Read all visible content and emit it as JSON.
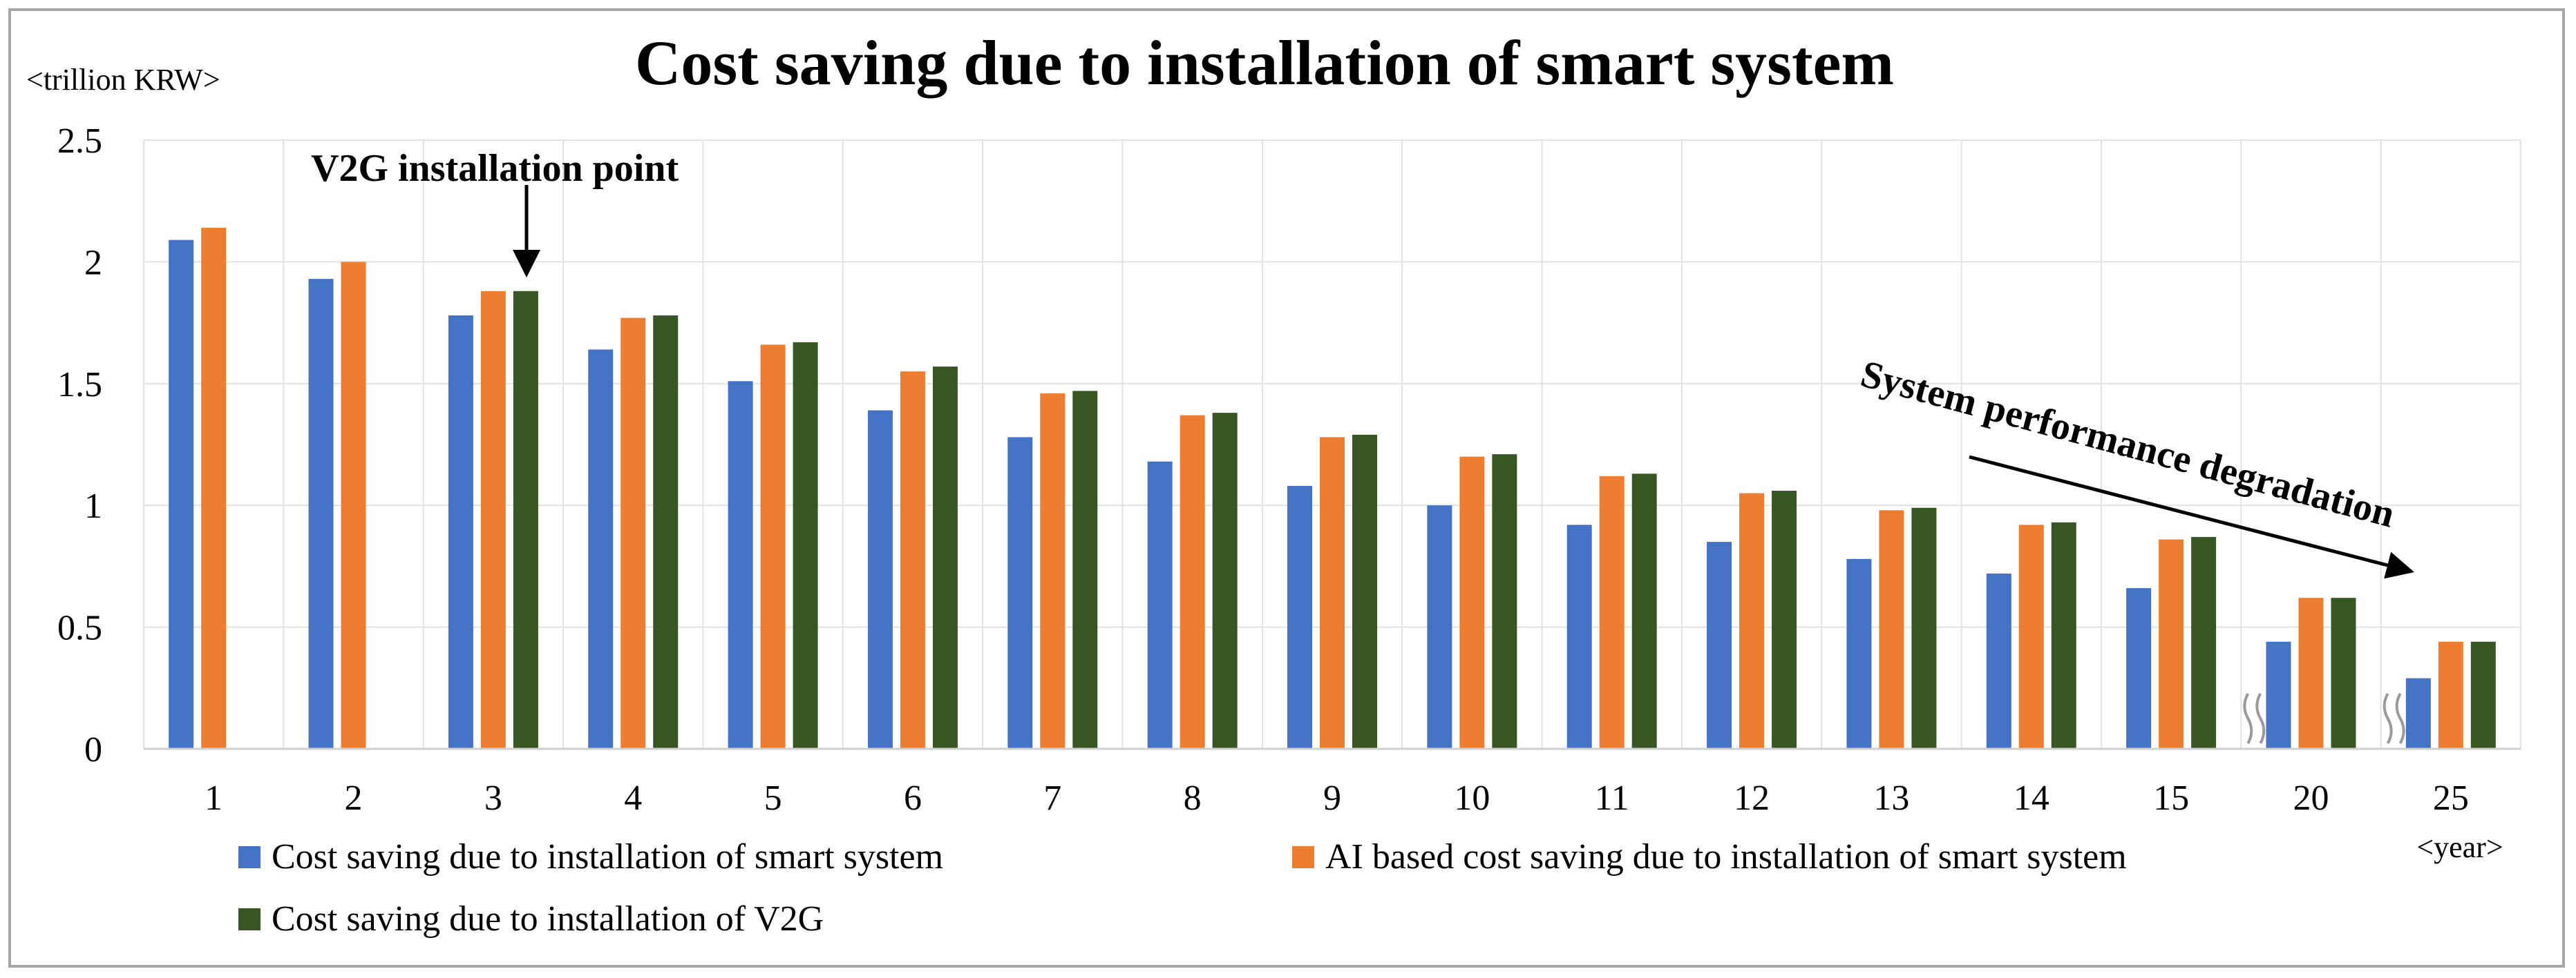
{
  "chart_data": {
    "type": "bar",
    "title": "Cost saving due to installation of smart system",
    "ylabel": "<trillion KRW>",
    "xlabel": "<year>",
    "ylim": [
      0,
      2.5
    ],
    "yticks": [
      0,
      0.5,
      1,
      1.5,
      2,
      2.5
    ],
    "ytick_labels": [
      "0",
      "0.5",
      "1",
      "1.5",
      "2",
      "2.5"
    ],
    "categories": [
      "1",
      "2",
      "3",
      "4",
      "5",
      "6",
      "7",
      "8",
      "9",
      "10",
      "11",
      "12",
      "13",
      "14",
      "15",
      "20",
      "25"
    ],
    "series": [
      {
        "name": "Cost saving due to installation of smart system",
        "color": "#4472c4",
        "values": [
          2.09,
          1.93,
          1.78,
          1.64,
          1.51,
          1.39,
          1.28,
          1.18,
          1.08,
          1.0,
          0.92,
          0.85,
          0.78,
          0.72,
          0.66,
          0.44,
          0.29
        ]
      },
      {
        "name": "AI based cost saving due to installation of smart system",
        "color": "#ed7d31",
        "values": [
          2.14,
          2.0,
          1.88,
          1.77,
          1.66,
          1.55,
          1.46,
          1.37,
          1.28,
          1.2,
          1.12,
          1.05,
          0.98,
          0.92,
          0.86,
          0.62,
          0.44
        ]
      },
      {
        "name": "Cost saving due to installation of V2G",
        "color": "#375623",
        "values": [
          null,
          null,
          1.88,
          1.78,
          1.67,
          1.57,
          1.47,
          1.38,
          1.29,
          1.21,
          1.13,
          1.06,
          0.99,
          0.93,
          0.87,
          0.62,
          0.44
        ]
      }
    ],
    "grid": "vertical",
    "axis_breaks_before": [
      "20",
      "25"
    ],
    "annotations": [
      {
        "text": "V2G installation point",
        "target_category": "3"
      },
      {
        "text": "System performance degradation"
      }
    ],
    "legend_position": "bottom"
  }
}
